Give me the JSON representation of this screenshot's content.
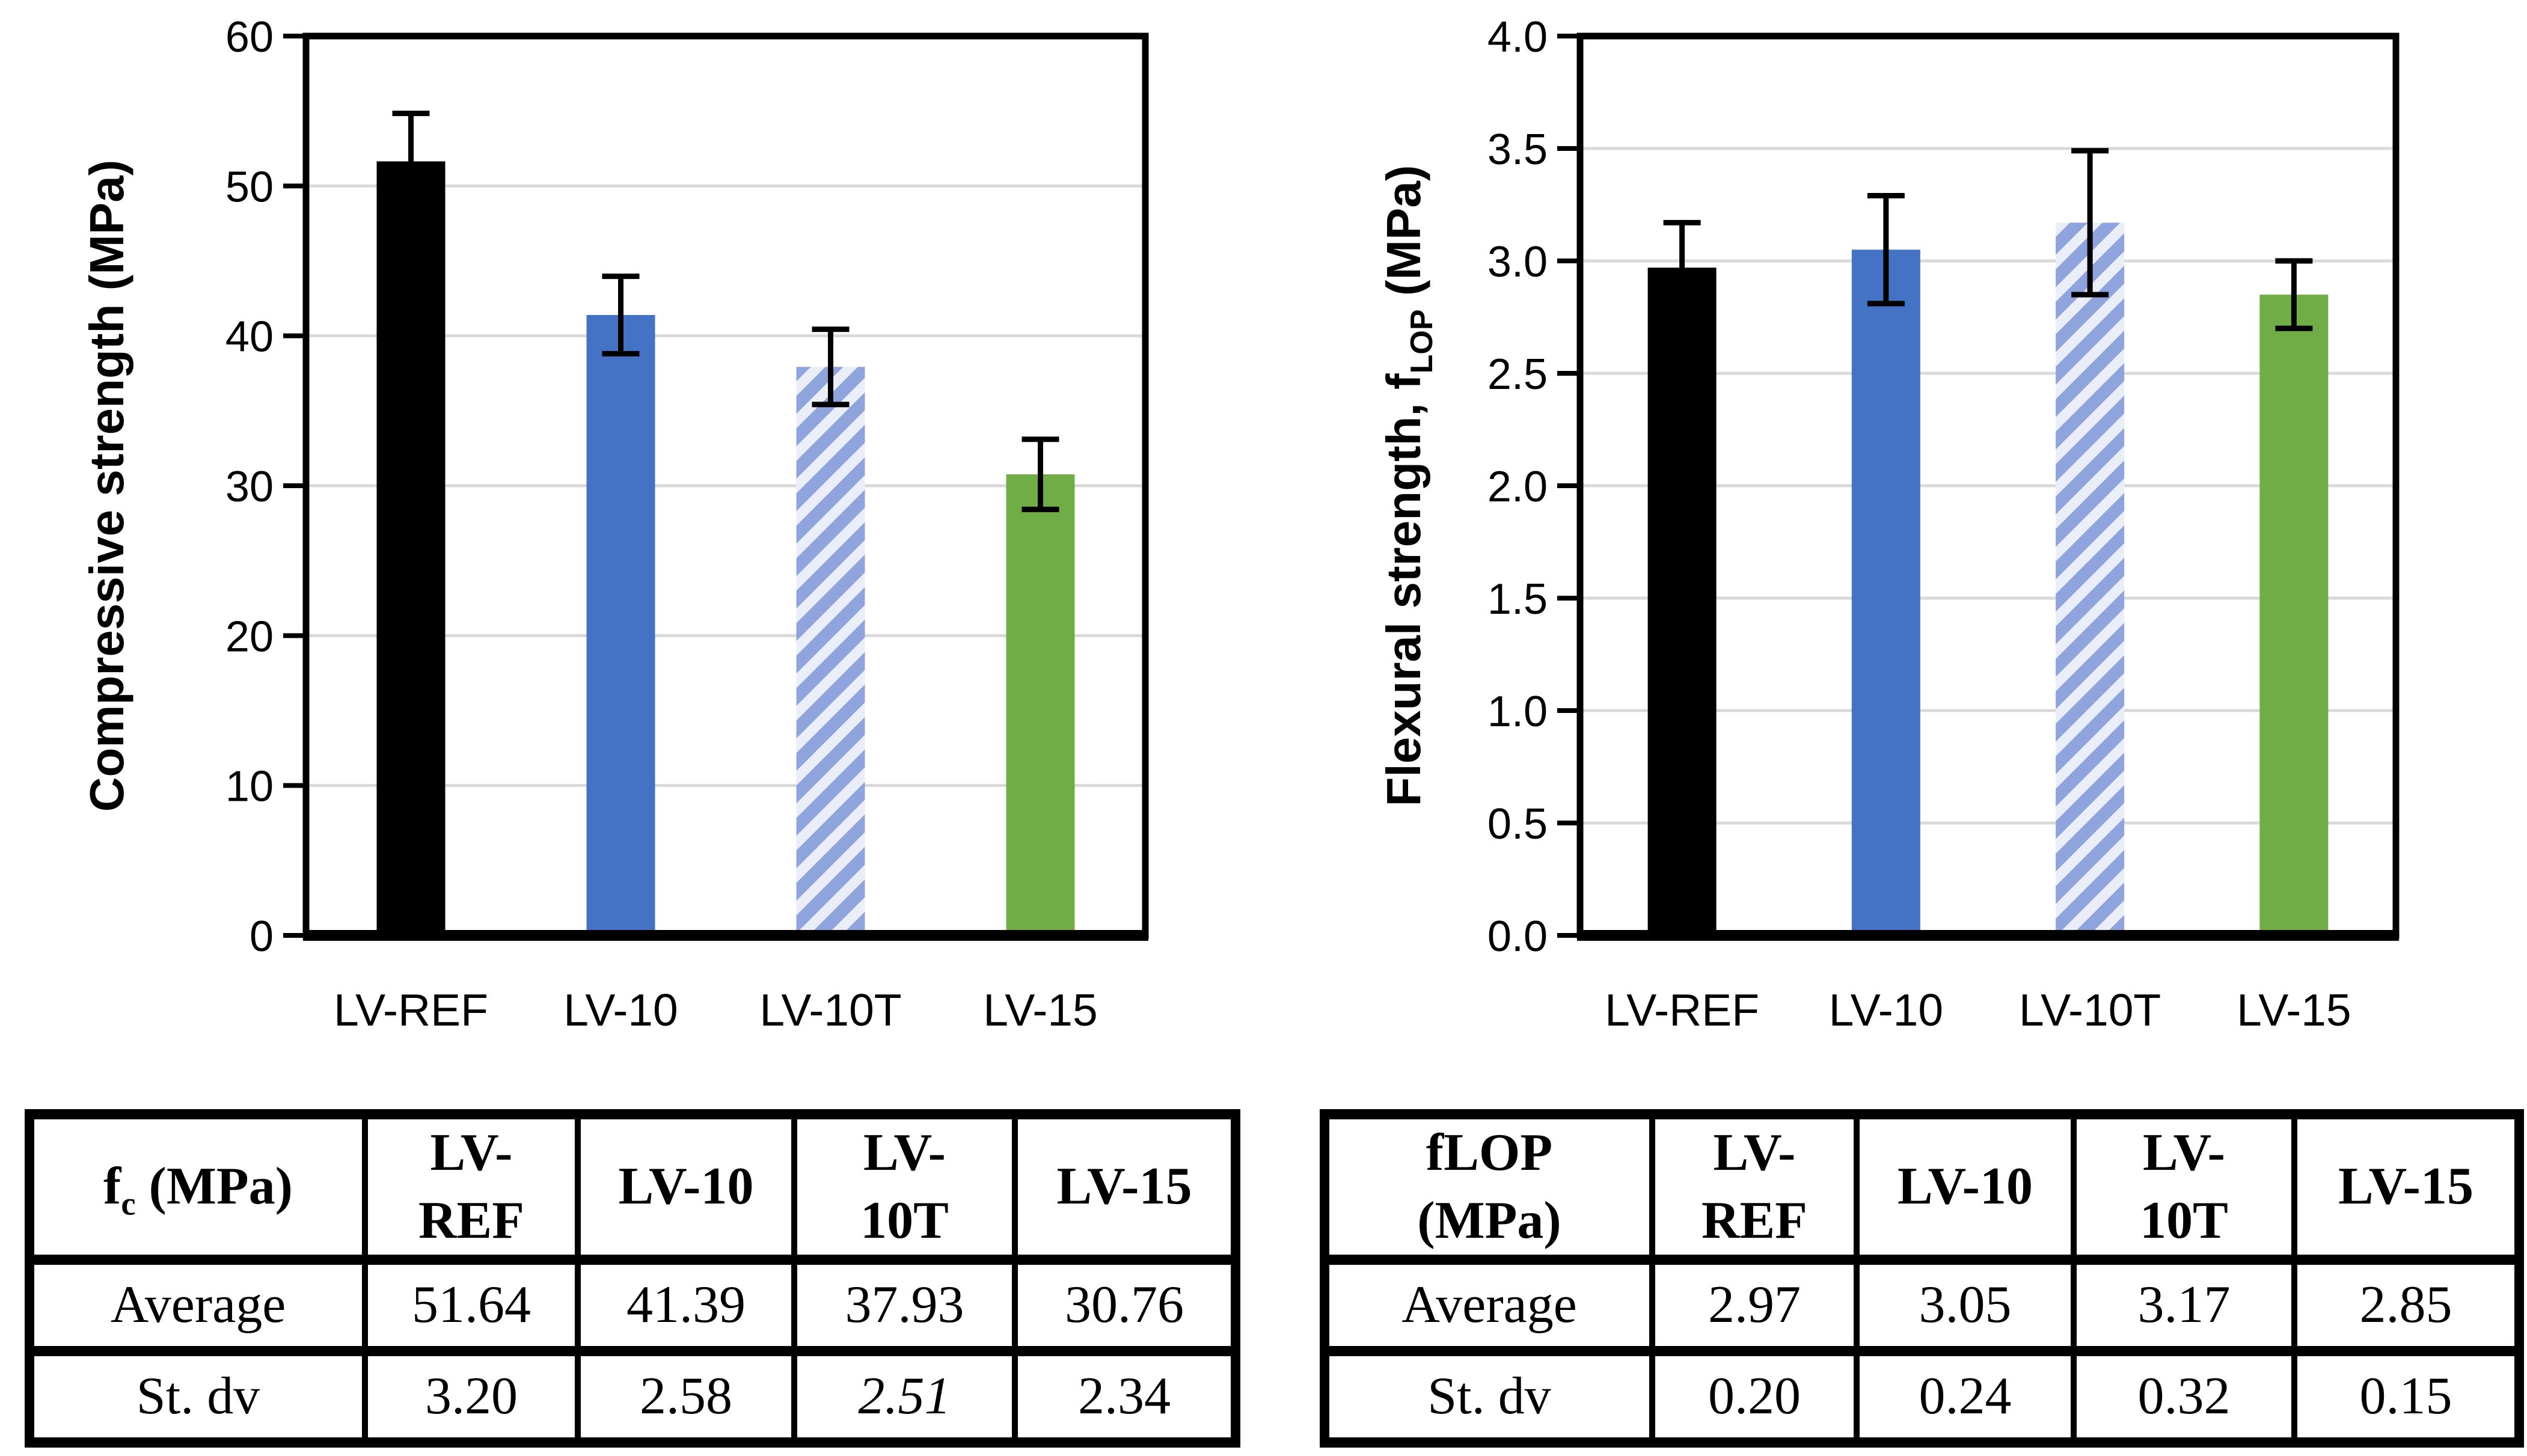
{
  "figure": {
    "background": "#ffffff"
  },
  "colors": {
    "bar_black": "#000000",
    "bar_blue": "#4472c4",
    "bar_green": "#70ad47",
    "hatch_bg": "#e9eef9",
    "hatch_fg": "#8fa3dc",
    "grid": "#d9d9d9",
    "axis": "#000000",
    "text": "#000000"
  },
  "chart_data": [
    {
      "type": "bar",
      "title": "",
      "ylabel_plain": "Compressive strength (MPa)",
      "ylabel_parts": {
        "pre": "Compressive strength (MPa)",
        "sub": "",
        "post": ""
      },
      "xlabel": "",
      "categories": [
        "LV-REF",
        "LV-10",
        "LV-10T",
        "LV-15"
      ],
      "values": [
        51.64,
        41.39,
        37.93,
        30.76
      ],
      "errors": [
        3.2,
        2.58,
        2.51,
        2.34
      ],
      "bar_styles": [
        "black",
        "blue",
        "hatch",
        "green"
      ],
      "ylim": [
        0,
        60
      ],
      "ytick_step": 10,
      "ytick_labels": [
        "0",
        "10",
        "20",
        "30",
        "40",
        "50",
        "60"
      ],
      "grid": true,
      "legend": "none"
    },
    {
      "type": "bar",
      "title": "",
      "ylabel_plain": "Flexural strength, fLOP (MPa)",
      "ylabel_parts": {
        "pre": "Flexural strength, f",
        "sub": "LOP",
        "post": " (MPa)"
      },
      "xlabel": "",
      "categories": [
        "LV-REF",
        "LV-10",
        "LV-10T",
        "LV-15"
      ],
      "values": [
        2.97,
        3.05,
        3.17,
        2.85
      ],
      "errors": [
        0.2,
        0.24,
        0.32,
        0.15
      ],
      "bar_styles": [
        "black",
        "blue",
        "hatch",
        "green"
      ],
      "ylim": [
        0,
        4
      ],
      "ytick_step": 0.5,
      "ytick_labels": [
        "0.0",
        "0.5",
        "1.0",
        "1.5",
        "2.0",
        "2.5",
        "3.0",
        "3.5",
        "4.0"
      ],
      "grid": true,
      "legend": "none"
    }
  ],
  "tables": [
    {
      "name": "compressive-strength-table",
      "header": [
        {
          "segs": [
            {
              "text": "f"
            },
            {
              "text": "c",
              "sub": true
            },
            {
              "text": " (MPa)"
            }
          ]
        },
        {
          "segs": [
            {
              "text": "LV-\nREF"
            }
          ]
        },
        {
          "segs": [
            {
              "text": "LV-10"
            }
          ]
        },
        {
          "segs": [
            {
              "text": "LV-\n10T"
            }
          ]
        },
        {
          "segs": [
            {
              "text": "LV-15"
            }
          ]
        }
      ],
      "rows": [
        {
          "cells": [
            {
              "segs": [
                {
                  "text": "Average"
                }
              ]
            },
            {
              "segs": [
                {
                  "text": "51.64"
                }
              ]
            },
            {
              "segs": [
                {
                  "text": "41.39"
                }
              ]
            },
            {
              "segs": [
                {
                  "text": "37.93"
                }
              ]
            },
            {
              "segs": [
                {
                  "text": "30.76"
                }
              ]
            }
          ]
        },
        {
          "cells": [
            {
              "segs": [
                {
                  "text": "St. dv"
                }
              ]
            },
            {
              "segs": [
                {
                  "text": "3.20"
                }
              ]
            },
            {
              "segs": [
                {
                  "text": "2.58"
                }
              ]
            },
            {
              "segs": [
                {
                  "text": "2.51",
                  "italic": true
                }
              ]
            },
            {
              "segs": [
                {
                  "text": "2.34"
                }
              ]
            }
          ]
        }
      ]
    },
    {
      "name": "flexural-strength-table",
      "header": [
        {
          "segs": [
            {
              "text": "fLOP\n(MPa)"
            }
          ]
        },
        {
          "segs": [
            {
              "text": "LV-\nREF"
            }
          ]
        },
        {
          "segs": [
            {
              "text": "LV-10"
            }
          ]
        },
        {
          "segs": [
            {
              "text": "LV-\n10T"
            }
          ]
        },
        {
          "segs": [
            {
              "text": "LV-15"
            }
          ]
        }
      ],
      "rows": [
        {
          "cells": [
            {
              "segs": [
                {
                  "text": "Average"
                }
              ]
            },
            {
              "segs": [
                {
                  "text": "2.97"
                }
              ]
            },
            {
              "segs": [
                {
                  "text": "3.05"
                }
              ]
            },
            {
              "segs": [
                {
                  "text": "3.17"
                }
              ]
            },
            {
              "segs": [
                {
                  "text": "2.85"
                }
              ]
            }
          ]
        },
        {
          "cells": [
            {
              "segs": [
                {
                  "text": "St. dv"
                }
              ]
            },
            {
              "segs": [
                {
                  "text": "0.20"
                }
              ]
            },
            {
              "segs": [
                {
                  "text": "0.24"
                }
              ]
            },
            {
              "segs": [
                {
                  "text": "0.32"
                }
              ]
            },
            {
              "segs": [
                {
                  "text": "0.15"
                }
              ]
            }
          ]
        }
      ]
    }
  ]
}
